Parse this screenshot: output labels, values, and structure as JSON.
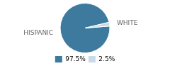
{
  "chart_data": {
    "type": "pie",
    "categories": [
      "HISPANIC",
      "WHITE"
    ],
    "values": [
      97.5,
      2.5
    ],
    "value_labels": [
      "97.5%",
      "2.5%"
    ],
    "colors": [
      "#3d7a9e",
      "#c8dce8"
    ],
    "legend": "bottom"
  }
}
